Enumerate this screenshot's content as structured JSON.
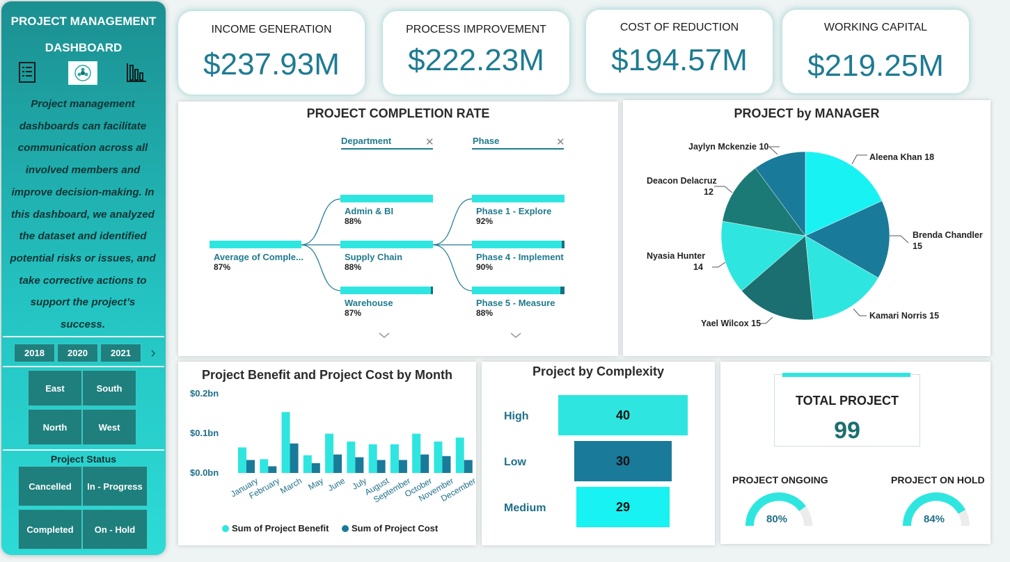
{
  "sidebar": {
    "title_line1": "PROJECT MANAGEMENT",
    "title_line2": "DASHBOARD",
    "icons": [
      "checklist-icon",
      "logo-icon",
      "bar-chart-icon"
    ],
    "description": "Project management dashboards can facilitate communication across all involved members and improve decision-making. In this dashboard, we analyzed the dataset and identified potential risks or issues, and take corrective actions to support the project’s success.",
    "years": [
      "2018",
      "2020",
      "2021"
    ],
    "year_next_icon": "›",
    "regions": [
      "East",
      "South",
      "North",
      "West"
    ],
    "status_label": "Project Status",
    "statuses": [
      "Cancelled",
      "In - Progress",
      "Completed",
      "On - Hold"
    ]
  },
  "kpis": [
    {
      "label": "INCOME GENERATION",
      "value": "$237.93M"
    },
    {
      "label": "PROCESS IMPROVEMENT",
      "value": "$222.23M"
    },
    {
      "label": "COST OF REDUCTION",
      "value": "$194.57M"
    },
    {
      "label": "WORKING CAPITAL",
      "value": "$219.25M"
    }
  ],
  "completion": {
    "title": "PROJECT COMPLETION RATE",
    "col1_header": "Department",
    "col2_header": "Phase",
    "close_icon": "✕",
    "chevron": "⌵",
    "root": {
      "name": "Average of Comple...",
      "pct": "87%",
      "value": 87
    },
    "departments": [
      {
        "name": "Admin & BI",
        "pct": "88%",
        "value": 88
      },
      {
        "name": "Supply Chain",
        "pct": "88%",
        "value": 88
      },
      {
        "name": "Warehouse",
        "pct": "87%",
        "value": 87
      }
    ],
    "phases": [
      {
        "name": "Phase 1 - Explore",
        "pct": "92%",
        "value": 92
      },
      {
        "name": "Phase 4 - Implement",
        "pct": "90%",
        "value": 90
      },
      {
        "name": "Phase 5 - Measure",
        "pct": "88%",
        "value": 88
      }
    ]
  },
  "manager": {
    "title": "PROJECT by MANAGER",
    "labels": [
      {
        "name": "Aleena Khan 18"
      },
      {
        "name": "Brenda Chandler",
        "value": "15"
      },
      {
        "name": "Kamari Norris 15"
      },
      {
        "name": "Yael Wilcox 15"
      },
      {
        "name": "Nyasia Hunter",
        "value": "14"
      },
      {
        "name": "Deacon Delacruz",
        "value": "12"
      },
      {
        "name": "Jaylyn Mckenzie 10"
      }
    ]
  },
  "monthly": {
    "title": "Project Benefit and Project Cost by Month",
    "yticks": [
      "$0.2bn",
      "$0.1bn",
      "$0.0bn"
    ],
    "legend": [
      "Sum of  Project Benefit",
      "Sum of  Project Cost"
    ]
  },
  "complexity": {
    "title": "Project by Complexity",
    "items": [
      {
        "label": "High",
        "value": "40",
        "n": 40,
        "color": "#2ee6df"
      },
      {
        "label": "Low",
        "value": "30",
        "n": 30,
        "color": "#1a7a9a"
      },
      {
        "label": "Medium",
        "value": "29",
        "n": 29,
        "color": "#18f2f2"
      }
    ]
  },
  "totals": {
    "total_label": "TOTAL PROJECT",
    "total_value": "99",
    "ongoing_label": "PROJECT ONGOING",
    "ongoing_value": "80%",
    "ongoing_fraction": 0.8,
    "onhold_label": "PROJECT ON HOLD",
    "onhold_value": "84%",
    "onhold_fraction": 0.84
  },
  "colors": {
    "cyan": "#2ee6df",
    "teal": "#1a7a7a",
    "blue": "#1a7a9a",
    "bright": "#18f2f2",
    "dark_teal": "#1b6f70"
  },
  "chart_data": [
    {
      "type": "bar",
      "title": "Project Benefit and Project Cost by Month",
      "categories": [
        "January",
        "February",
        "March",
        "May",
        "June",
        "July",
        "August",
        "September",
        "October",
        "November",
        "December"
      ],
      "series": [
        {
          "name": "Sum of  Project Benefit",
          "values": [
            0.065,
            0.035,
            0.155,
            0.045,
            0.1,
            0.08,
            0.073,
            0.073,
            0.1,
            0.08,
            0.09
          ]
        },
        {
          "name": "Sum of  Project Cost",
          "values": [
            0.033,
            0.017,
            0.075,
            0.025,
            0.047,
            0.04,
            0.033,
            0.033,
            0.047,
            0.043,
            0.033
          ]
        }
      ],
      "ylim": [
        0,
        0.2
      ],
      "ytick_labels": [
        "$0.0bn",
        "$0.1bn",
        "$0.2bn"
      ],
      "legend": "bottom"
    },
    {
      "type": "pie",
      "title": "PROJECT by MANAGER",
      "categories": [
        "Aleena Khan",
        "Brenda Chandler",
        "Kamari Norris",
        "Yael Wilcox",
        "Nyasia Hunter",
        "Deacon Delacruz",
        "Jaylyn Mckenzie"
      ],
      "values": [
        18,
        15,
        15,
        15,
        14,
        12,
        10
      ],
      "colors": [
        "#18f2f2",
        "#1a7a9a",
        "#2ee6df",
        "#1b6f70",
        "#2ee6df",
        "#1b7a76",
        "#1a7a9a"
      ]
    },
    {
      "type": "bar",
      "title": "Project by Complexity",
      "categories": [
        "High",
        "Low",
        "Medium"
      ],
      "values": [
        40,
        30,
        29
      ]
    },
    {
      "type": "bar",
      "title": "PROJECT COMPLETION RATE",
      "categories": [
        "Average of Comple...",
        "Admin & BI",
        "Supply Chain",
        "Warehouse",
        "Phase 1 - Explore",
        "Phase 4 - Implement",
        "Phase 5 - Measure"
      ],
      "values": [
        87,
        88,
        88,
        87,
        92,
        90,
        88
      ]
    }
  ]
}
